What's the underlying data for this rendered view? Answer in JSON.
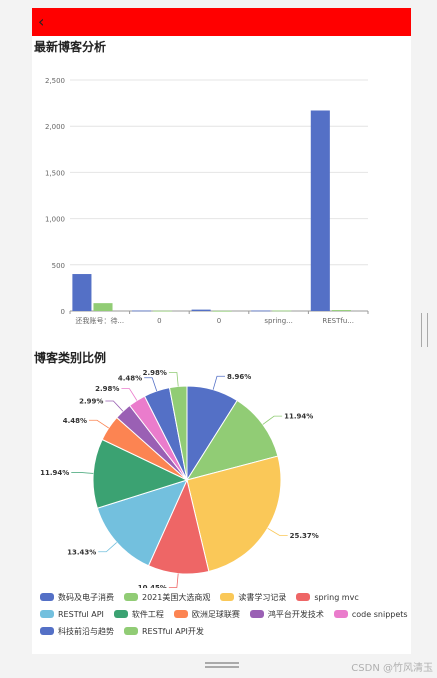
{
  "topbar": {
    "back_icon": "chevron-left-icon",
    "back_glyph": "‹",
    "color": "#ff0000"
  },
  "sections": {
    "bar_title": "最新博客分析",
    "pie_title": "博客类别比例"
  },
  "bar_chart": {
    "type": "bar",
    "categories": [
      "还我账号：待...",
      "0",
      "0",
      "spring...",
      "RESTfu..."
    ],
    "series": [
      {
        "color": "#5470c6",
        "values": [
          400,
          5,
          15,
          5,
          2170
        ]
      },
      {
        "color": "#91cc75",
        "values": [
          85,
          3,
          2,
          5,
          10
        ]
      }
    ],
    "ylim": [
      0,
      2500
    ],
    "yticks": [
      0,
      500,
      1000,
      1500,
      2000,
      2500
    ],
    "ytick_labels": [
      "0",
      "500",
      "1,000",
      "1,500",
      "2,000",
      "2,500"
    ],
    "grid": true
  },
  "chart_data": {
    "type": "pie",
    "slices": [
      {
        "name": "数码及电子消费",
        "value": 8.96,
        "label": "8.96%",
        "color": "#5470c6"
      },
      {
        "name": "2021美国大选商观",
        "value": 11.94,
        "label": "11.94%",
        "color": "#91cc75"
      },
      {
        "name": "读書学习记录",
        "value": 25.37,
        "label": "25.37%",
        "color": "#fac858"
      },
      {
        "name": "spring mvc",
        "value": 10.45,
        "label": "10.45%",
        "color": "#ee6666"
      },
      {
        "name": "RESTful API",
        "value": 13.43,
        "label": "13.43%",
        "color": "#73c0de"
      },
      {
        "name": "软件工程",
        "value": 11.94,
        "label": "11.94%",
        "color": "#3ba272"
      },
      {
        "name": "欧洲足球联赛",
        "value": 4.48,
        "label": "4.48%",
        "color": "#fc8452"
      },
      {
        "name": "鸿平台开发技术",
        "value": 2.99,
        "label": "2.99%",
        "color": "#9a60b4"
      },
      {
        "name": "code snippets",
        "value": 2.98,
        "label": "2.98%",
        "color": "#ea7ccc"
      },
      {
        "name": "科技前沿与趋势",
        "value": 4.48,
        "label": "4.48%",
        "color": "#5470c6"
      },
      {
        "name": "RESTful API开发",
        "value": 2.98,
        "label": "2.98%",
        "color": "#91cc75"
      }
    ],
    "legend_position": "bottom"
  },
  "watermark": "CSDN @竹风清玉"
}
